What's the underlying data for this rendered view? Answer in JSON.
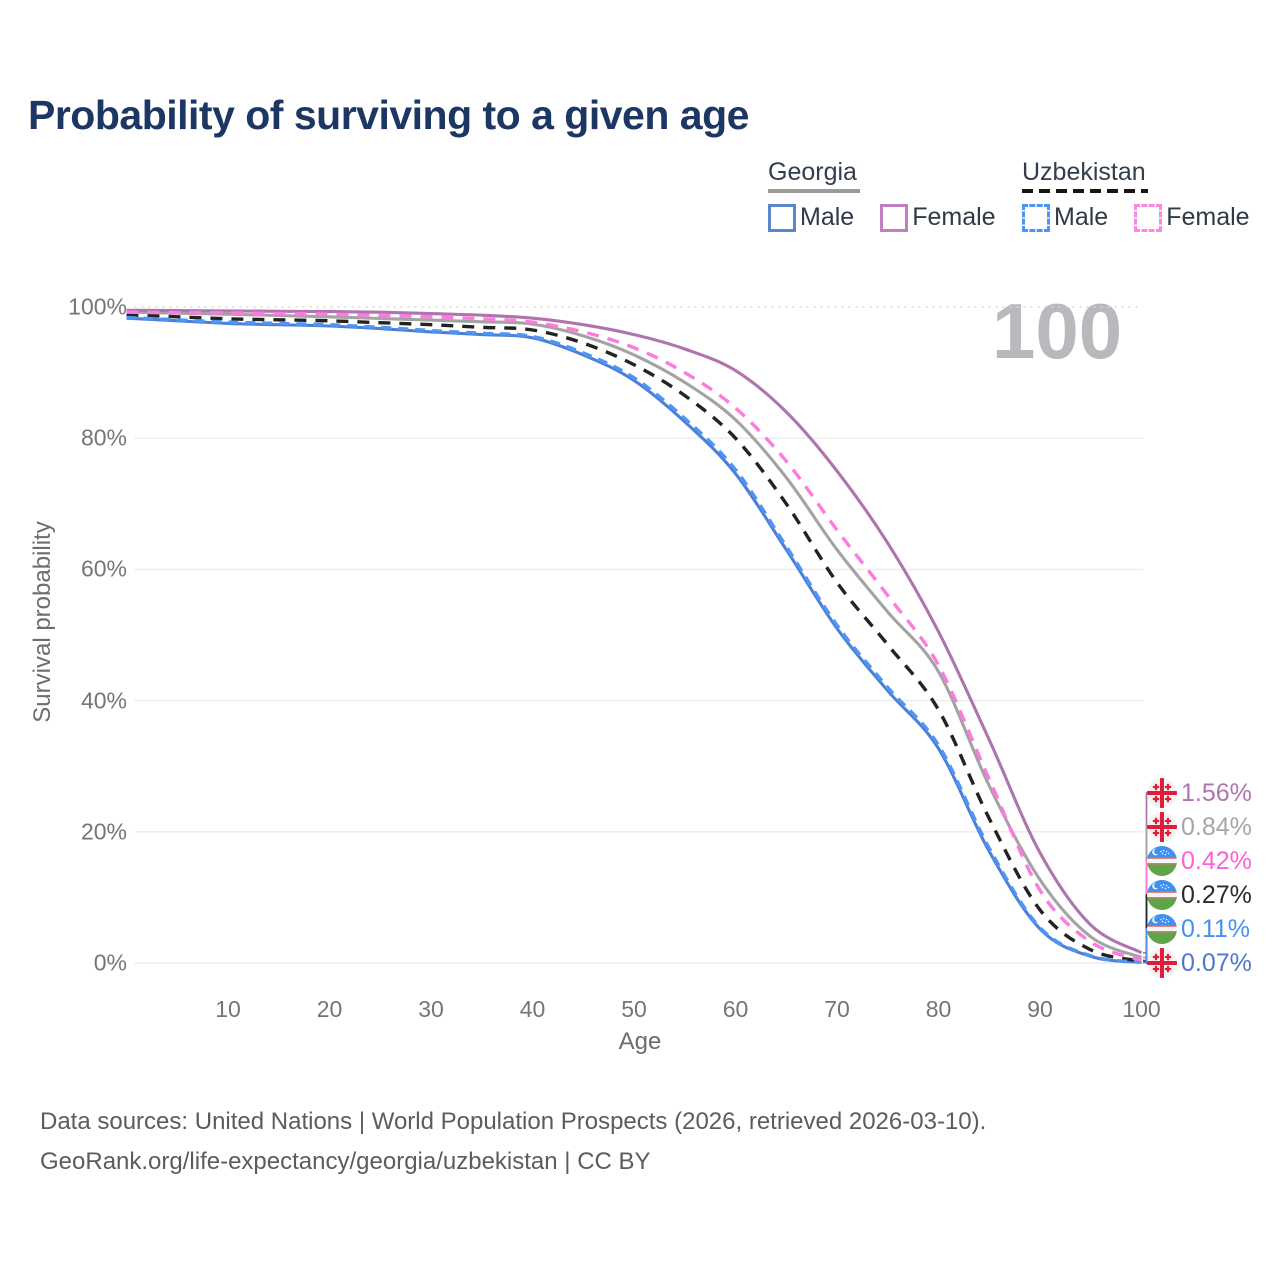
{
  "title": "Probability of surviving to a given age",
  "watermark": "100",
  "legend": {
    "groups": [
      {
        "label": "Georgia",
        "line_style": "solid",
        "underline_color": "#9b9b9b",
        "items": [
          {
            "label": "Male",
            "swatch_color": "#5a87c9",
            "dashed": false
          },
          {
            "label": "Female",
            "swatch_color": "#c07fc0",
            "dashed": false
          }
        ]
      },
      {
        "label": "Uzbekistan",
        "line_style": "dashed",
        "underline_color": "#161616",
        "items": [
          {
            "label": "Male",
            "swatch_color": "#4f94f7",
            "dashed": true
          },
          {
            "label": "Female",
            "swatch_color": "#ff85e2",
            "dashed": true
          }
        ]
      }
    ]
  },
  "chart_data": {
    "type": "line",
    "title": "Probability of surviving to a given age",
    "xlabel": "Age",
    "ylabel": "Survival probability",
    "xlim": [
      0,
      100
    ],
    "ylim": [
      0,
      100
    ],
    "grid": "horizontal",
    "x_ticks": [
      10,
      20,
      30,
      40,
      50,
      60,
      70,
      80,
      90,
      100
    ],
    "y_ticks": [
      0,
      20,
      40,
      60,
      80,
      100
    ],
    "y_tick_suffix": "%",
    "hover_age_indicator": "100",
    "x": [
      0,
      5,
      10,
      15,
      20,
      25,
      30,
      35,
      40,
      45,
      50,
      55,
      60,
      65,
      70,
      75,
      80,
      85,
      90,
      95,
      100
    ],
    "series": [
      {
        "name": "Georgia Female",
        "country": "georgia",
        "sex": "female",
        "color": "#ae74ae",
        "dashed": false,
        "values": [
          99.5,
          99.45,
          99.4,
          99.35,
          99.3,
          99.2,
          99.0,
          98.75,
          98.3,
          97.3,
          95.8,
          93.6,
          90.3,
          84.0,
          75.0,
          64.0,
          50.5,
          34.0,
          16.8,
          5.8,
          1.56
        ],
        "end_label": {
          "text": "1.56%",
          "color": "#b273b1",
          "flag": "georgia"
        }
      },
      {
        "name": "Georgia",
        "country": "georgia",
        "sex": "both",
        "color": "#a3a3a3",
        "dashed": false,
        "values": [
          99.2,
          99.05,
          98.9,
          98.7,
          98.5,
          98.25,
          98.0,
          97.75,
          97.4,
          95.6,
          92.7,
          88.5,
          82.8,
          74.0,
          63.0,
          53.5,
          44.4,
          27.0,
          12.7,
          4.0,
          0.84
        ],
        "end_label": {
          "text": "0.84%",
          "color": "#a6a6a6",
          "flag": "georgia"
        }
      },
      {
        "name": "Uzbekistan Female",
        "country": "uzbekistan",
        "sex": "female",
        "color": "#ff7ade",
        "dashed": true,
        "values": [
          99.2,
          99.15,
          99.1,
          99.0,
          98.9,
          98.7,
          98.5,
          98.2,
          97.7,
          96.2,
          93.8,
          90.0,
          84.6,
          76.5,
          66.0,
          56.0,
          45.4,
          28.0,
          11.1,
          3.2,
          0.42
        ],
        "end_label": {
          "text": "0.42%",
          "color": "#ff5fd9",
          "flag": "uzbekistan"
        }
      },
      {
        "name": "Uzbekistan",
        "country": "uzbekistan",
        "sex": "both",
        "color": "#232323",
        "dashed": true,
        "values": [
          98.8,
          98.5,
          98.2,
          98.05,
          97.9,
          97.6,
          97.3,
          96.9,
          96.5,
          94.5,
          91.2,
          86.5,
          80.0,
          70.0,
          58.0,
          48.5,
          38.6,
          22.0,
          8.1,
          2.0,
          0.27
        ],
        "end_label": {
          "text": "0.27%",
          "color": "#2b2b2b",
          "flag": "uzbekistan"
        }
      },
      {
        "name": "Uzbekistan Male",
        "country": "uzbekistan",
        "sex": "male",
        "color": "#4f94f7",
        "dashed": true,
        "values": [
          98.4,
          98.05,
          97.7,
          97.5,
          97.3,
          96.9,
          96.4,
          96.0,
          95.5,
          93.0,
          89.2,
          83.0,
          75.2,
          63.5,
          51.5,
          42.0,
          33.2,
          17.5,
          5.4,
          1.1,
          0.11
        ],
        "end_label": {
          "text": "0.11%",
          "color": "#4690f2",
          "flag": "uzbekistan"
        }
      },
      {
        "name": "Georgia Male",
        "country": "georgia",
        "sex": "male",
        "color": "#4c80d4",
        "dashed": false,
        "values": [
          98.3,
          97.9,
          97.5,
          97.3,
          97.1,
          96.7,
          96.2,
          95.8,
          95.3,
          92.7,
          88.8,
          82.5,
          74.6,
          63.0,
          51.0,
          41.5,
          32.7,
          17.0,
          5.2,
          1.0,
          0.07
        ],
        "end_label": {
          "text": "0.07%",
          "color": "#5078c8",
          "flag": "georgia"
        }
      }
    ]
  },
  "colors": {
    "title": "#1c3763",
    "axis_text": "#757575",
    "grid": "#ececec",
    "watermark": "#bab7bd",
    "georgia_flag_red": "#e11c38",
    "uzbekistan_blue": "#4090ee",
    "uzbekistan_green": "#5da546"
  },
  "footer": {
    "line1": "Data sources: United Nations | World Population Prospects (2026, retrieved 2026-03-10).",
    "line2": "GeoRank.org/life-expectancy/georgia/uzbekistan | CC BY"
  }
}
